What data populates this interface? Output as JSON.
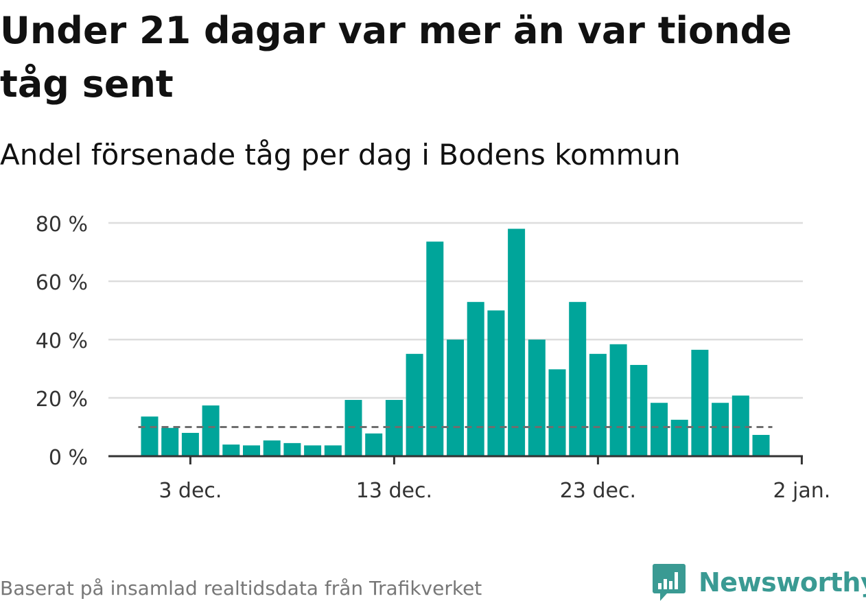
{
  "header": {
    "title": "Under 21 dagar var mer än var tionde tåg sent",
    "subtitle": "Andel försenade tåg per dag i Bodens kommun"
  },
  "footer": {
    "source": "Baserat på insamlad realtidsdata från Trafikverket",
    "brand": "Newsworthy"
  },
  "colors": {
    "bar": "#00a59a",
    "reference_line": "#6e6e6e",
    "grid": "#dddddd",
    "axis": "#333333",
    "brand": "#3a9a93"
  },
  "chart_data": {
    "type": "bar",
    "x": [
      "2021-12-01",
      "2021-12-02",
      "2021-12-03",
      "2021-12-04",
      "2021-12-05",
      "2021-12-06",
      "2021-12-07",
      "2021-12-08",
      "2021-12-09",
      "2021-12-10",
      "2021-12-11",
      "2021-12-12",
      "2021-12-13",
      "2021-12-14",
      "2021-12-15",
      "2021-12-16",
      "2021-12-17",
      "2021-12-18",
      "2021-12-19",
      "2021-12-20",
      "2021-12-21",
      "2021-12-22",
      "2021-12-23",
      "2021-12-24",
      "2021-12-25",
      "2021-12-26",
      "2021-12-27",
      "2021-12-28",
      "2021-12-29",
      "2021-12-30",
      "2021-12-31"
    ],
    "values": [
      13.6,
      9.7,
      8.0,
      17.4,
      4.0,
      3.7,
      5.4,
      4.5,
      3.7,
      3.7,
      19.3,
      7.8,
      19.3,
      35.1,
      73.6,
      40.0,
      52.9,
      50.0,
      78.0,
      40.0,
      29.8,
      52.9,
      35.1,
      38.4,
      31.3,
      18.3,
      12.5,
      36.5,
      18.3,
      20.8,
      7.3
    ],
    "reference_line": 10,
    "ylim": [
      0,
      80
    ],
    "yticks": [
      0,
      20,
      40,
      60,
      80
    ],
    "ytick_labels": [
      "0 %",
      "20 %",
      "40 %",
      "60 %",
      "80 %"
    ],
    "xticks": [
      "2021-12-03",
      "2021-12-13",
      "2021-12-23",
      "2022-01-02"
    ],
    "xtick_labels": [
      "3 dec.",
      "13 dec.",
      "23 dec.",
      "2 jan."
    ],
    "grid": true,
    "xlabel": "",
    "ylabel": ""
  }
}
